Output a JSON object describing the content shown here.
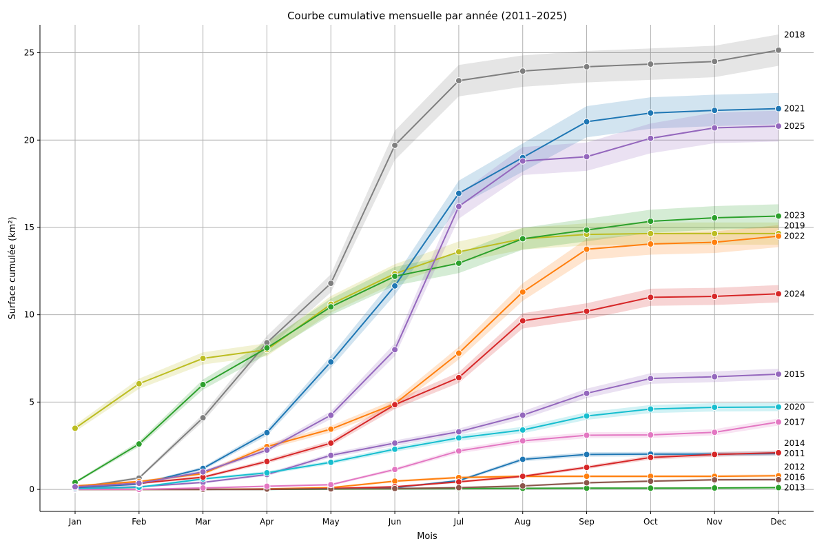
{
  "chart_data": {
    "type": "line",
    "title": "Courbe cumulative mensuelle par année (2011–2025)",
    "xlabel": "Mois",
    "ylabel": "Surface cumulée (km²)",
    "categories": [
      "Jan",
      "Feb",
      "Mar",
      "Apr",
      "May",
      "Jun",
      "Jul",
      "Aug",
      "Sep",
      "Oct",
      "Nov",
      "Dec"
    ],
    "yticks": [
      0,
      5,
      10,
      15,
      20,
      25
    ],
    "ylim": [
      -1.26,
      26.6
    ],
    "grid": true,
    "legend": "labels at line ends (right)",
    "series": [
      {
        "name": "2011",
        "color": "#1f77b4",
        "values": [
          0,
          0,
          0,
          0,
          0.02,
          0.1,
          0.5,
          1.72,
          2.0,
          2.02,
          2.02,
          2.05
        ]
      },
      {
        "name": "2012",
        "color": "#ff7f0e",
        "values": [
          0,
          0,
          0,
          0.03,
          0.1,
          0.47,
          0.68,
          0.75,
          0.75,
          0.75,
          0.75,
          0.78
        ]
      },
      {
        "name": "2013",
        "color": "#2ca02c",
        "values": [
          0,
          0,
          0,
          0,
          0.02,
          0.03,
          0.05,
          0.06,
          0.07,
          0.07,
          0.08,
          0.1
        ]
      },
      {
        "name": "2014",
        "color": "#d62728",
        "values": [
          0,
          0,
          0,
          0,
          0.05,
          0.15,
          0.43,
          0.75,
          1.26,
          1.83,
          2.0,
          2.1
        ]
      },
      {
        "name": "2015",
        "color": "#9467bd",
        "values": [
          0.05,
          0.15,
          0.4,
          0.85,
          1.95,
          2.65,
          3.3,
          4.25,
          5.5,
          6.35,
          6.45,
          6.6
        ]
      },
      {
        "name": "2016",
        "color": "#8c564b",
        "values": [
          0,
          0,
          0,
          0.02,
          0.03,
          0.05,
          0.1,
          0.2,
          0.38,
          0.47,
          0.55,
          0.56
        ]
      },
      {
        "name": "2017",
        "color": "#e377c2",
        "values": [
          0,
          0,
          0.08,
          0.18,
          0.27,
          1.14,
          2.2,
          2.78,
          3.1,
          3.12,
          3.27,
          3.86
        ]
      },
      {
        "name": "2018",
        "color": "#7f7f7f",
        "values": [
          0.1,
          0.65,
          4.1,
          8.4,
          11.8,
          19.7,
          23.4,
          23.95,
          24.2,
          24.35,
          24.5,
          25.15
        ]
      },
      {
        "name": "2019",
        "color": "#bcbd22",
        "values": [
          3.5,
          6.05,
          7.5,
          8.0,
          10.6,
          12.35,
          13.6,
          14.35,
          14.6,
          14.65,
          14.65,
          14.65
        ]
      },
      {
        "name": "2020",
        "color": "#17becf",
        "values": [
          0.05,
          0.12,
          0.6,
          0.95,
          1.55,
          2.3,
          2.95,
          3.4,
          4.2,
          4.6,
          4.7,
          4.72
        ]
      },
      {
        "name": "2021",
        "color": "#1f77b4",
        "values": [
          0.1,
          0.3,
          1.2,
          3.25,
          7.3,
          11.65,
          16.95,
          19.0,
          21.05,
          21.55,
          21.7,
          21.8
        ]
      },
      {
        "name": "2022",
        "color": "#ff7f0e",
        "values": [
          0.2,
          0.45,
          0.9,
          2.45,
          3.45,
          4.9,
          7.8,
          11.3,
          13.75,
          14.05,
          14.15,
          14.5
        ]
      },
      {
        "name": "2023",
        "color": "#2ca02c",
        "values": [
          0.4,
          2.6,
          6.0,
          8.1,
          10.45,
          12.2,
          12.95,
          14.35,
          14.85,
          15.35,
          15.55,
          15.65
        ]
      },
      {
        "name": "2024",
        "color": "#d62728",
        "values": [
          0.15,
          0.35,
          0.7,
          1.6,
          2.65,
          4.85,
          6.4,
          9.65,
          10.2,
          11.0,
          11.05,
          11.2
        ]
      },
      {
        "name": "2025",
        "color": "#9467bd",
        "values": [
          0.15,
          0.35,
          1.0,
          2.25,
          4.25,
          8.0,
          16.2,
          18.8,
          19.05,
          20.1,
          20.7,
          20.8
        ]
      }
    ]
  }
}
